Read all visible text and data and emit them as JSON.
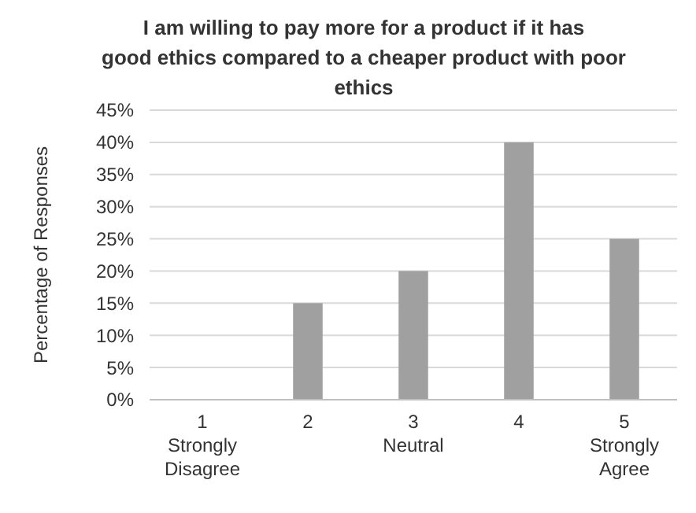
{
  "chart_data": {
    "type": "bar",
    "title": "I am willing to pay more for a product if it has good ethics compared to a cheaper product with poor ethics",
    "ylabel": "Percentage of Responses",
    "categories": [
      "1\nStrongly\nDisagree",
      "2",
      "3\nNeutral",
      "4",
      "5\nStrongly\nAgree"
    ],
    "values": [
      0,
      15,
      20,
      40,
      25
    ],
    "color": "#a0a0a0",
    "ylim": [
      0,
      45
    ],
    "yticks": [
      {
        "value": 0,
        "label": "0%"
      },
      {
        "value": 5,
        "label": "5%"
      },
      {
        "value": 10,
        "label": "10%"
      },
      {
        "value": 15,
        "label": "15%"
      },
      {
        "value": 20,
        "label": "20%"
      },
      {
        "value": 25,
        "label": "25%"
      },
      {
        "value": 30,
        "label": "30%"
      },
      {
        "value": 35,
        "label": "35%"
      },
      {
        "value": 40,
        "label": "40%"
      },
      {
        "value": 45,
        "label": "45%"
      }
    ],
    "grid": "y"
  }
}
